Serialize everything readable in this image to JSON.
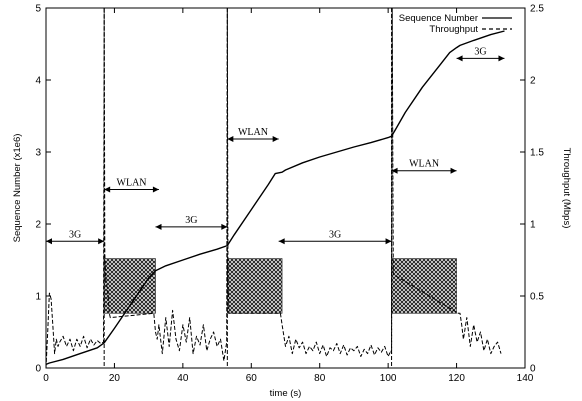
{
  "chart_data": {
    "type": "line",
    "xlabel": "time (s)",
    "ylabel_left": "Sequence Number (x1e6)",
    "ylabel_right": "Throughput (Mbps)",
    "xlim": [
      0,
      140
    ],
    "ylim_left": [
      0,
      5
    ],
    "ylim_right": [
      0,
      2.5
    ],
    "x_ticks": [
      0,
      20,
      40,
      60,
      80,
      100,
      120,
      140
    ],
    "y_left_ticks": [
      0,
      1,
      2,
      3,
      4,
      5
    ],
    "y_right_ticks": [
      0,
      0.5,
      1,
      1.5,
      2,
      2.5
    ],
    "grid": false,
    "legend_position": "top-right",
    "series": [
      {
        "name": "Sequence Number",
        "axis": "left",
        "style": "solid",
        "x": [
          0,
          1,
          5,
          10,
          15,
          17,
          20,
          25,
          30,
          32,
          35,
          40,
          45,
          50,
          53,
          55,
          60,
          65,
          67,
          69,
          70,
          75,
          80,
          85,
          90,
          95,
          100,
          101,
          102,
          105,
          110,
          115,
          118,
          120,
          121,
          125,
          130,
          134
        ],
        "values": [
          0.05,
          0.07,
          0.12,
          0.2,
          0.28,
          0.35,
          0.55,
          0.9,
          1.25,
          1.35,
          1.42,
          1.5,
          1.58,
          1.65,
          1.7,
          1.85,
          2.2,
          2.55,
          2.7,
          2.72,
          2.75,
          2.85,
          2.93,
          3.0,
          3.07,
          3.13,
          3.2,
          3.22,
          3.3,
          3.55,
          3.9,
          4.2,
          4.38,
          4.45,
          4.48,
          4.55,
          4.63,
          4.68
        ]
      },
      {
        "name": "Throughput",
        "axis": "right",
        "style": "dashed",
        "x": [
          0,
          0.5,
          1,
          1.5,
          2,
          2.5,
          3,
          3.5,
          4,
          5,
          6,
          7,
          8,
          9,
          10,
          11,
          12,
          13,
          14,
          15,
          16,
          16.8,
          17,
          17.2,
          17.5,
          18,
          18.5,
          18.8,
          31.5,
          32,
          32.5,
          33,
          34,
          35,
          36,
          37,
          38,
          39,
          40,
          41,
          42,
          43,
          44,
          45,
          46,
          47,
          48,
          49,
          50,
          51,
          52,
          52.8,
          53,
          53.2,
          53.5,
          68.5,
          69,
          70,
          71,
          72,
          73,
          74,
          75,
          76,
          77,
          78,
          79,
          80,
          81,
          82,
          83,
          84,
          85,
          86,
          87,
          88,
          89,
          90,
          91,
          92,
          93,
          94,
          95,
          96,
          97,
          98,
          99,
          100,
          100.8,
          101,
          101.2,
          101.5,
          120.5,
          121,
          121.5,
          122,
          123,
          124,
          125,
          126,
          127,
          128,
          129,
          130,
          131,
          132,
          133
        ],
        "values": [
          0,
          0.25,
          0.52,
          0.48,
          0.3,
          0.1,
          0.2,
          0.15,
          0.18,
          0.22,
          0.15,
          0.2,
          0.12,
          0.2,
          0.15,
          0.22,
          0.14,
          0.2,
          0.16,
          0.19,
          0.17,
          0.18,
          2.5,
          0.8,
          0.6,
          0.55,
          0.38,
          0.35,
          0.38,
          0.25,
          0.2,
          0.3,
          0.1,
          0.35,
          0.15,
          0.4,
          0.2,
          0.12,
          0.3,
          0.18,
          0.35,
          0.1,
          0.22,
          0.16,
          0.3,
          0.12,
          0.2,
          0.25,
          0.15,
          0.2,
          0.05,
          0.18,
          2.5,
          0.6,
          0.38,
          0.38,
          0.3,
          0.15,
          0.22,
          0.1,
          0.2,
          0.14,
          0.18,
          0.1,
          0.15,
          0.12,
          0.18,
          0.1,
          0.16,
          0.08,
          0.14,
          0.12,
          0.17,
          0.1,
          0.16,
          0.09,
          0.14,
          0.12,
          0.15,
          0.08,
          0.13,
          0.1,
          0.16,
          0.09,
          0.14,
          0.11,
          0.15,
          0.08,
          0.12,
          0.1,
          2.5,
          0.65,
          0.38,
          0.38,
          0.3,
          0.2,
          0.35,
          0.15,
          0.3,
          0.18,
          0.25,
          0.12,
          0.2,
          0.1,
          0.15,
          0.18,
          0.1
        ]
      }
    ],
    "vertical_lines_x": [
      17,
      53,
      101
    ],
    "hatched_regions": [
      {
        "x_start": 17,
        "x_end": 32,
        "y_low": 0.38,
        "y_high": 0.76
      },
      {
        "x_start": 53,
        "x_end": 69,
        "y_low": 0.38,
        "y_high": 0.76
      },
      {
        "x_start": 101,
        "x_end": 120,
        "y_low": 0.38,
        "y_high": 0.76
      }
    ],
    "annotations": [
      {
        "text": "3G",
        "x_start": 0,
        "x_end": 17,
        "y": 0.88
      },
      {
        "text": "WLAN",
        "x_start": 17,
        "x_end": 33,
        "y": 1.24
      },
      {
        "text": "3G",
        "x_start": 32,
        "x_end": 53,
        "y": 0.98
      },
      {
        "text": "WLAN",
        "x_start": 53,
        "x_end": 68,
        "y": 1.59
      },
      {
        "text": "3G",
        "x_start": 68,
        "x_end": 101,
        "y": 0.88
      },
      {
        "text": "WLAN",
        "x_start": 101,
        "x_end": 120,
        "y": 1.37
      },
      {
        "text": "3G",
        "x_start": 120,
        "x_end": 134,
        "y": 2.15
      }
    ]
  }
}
